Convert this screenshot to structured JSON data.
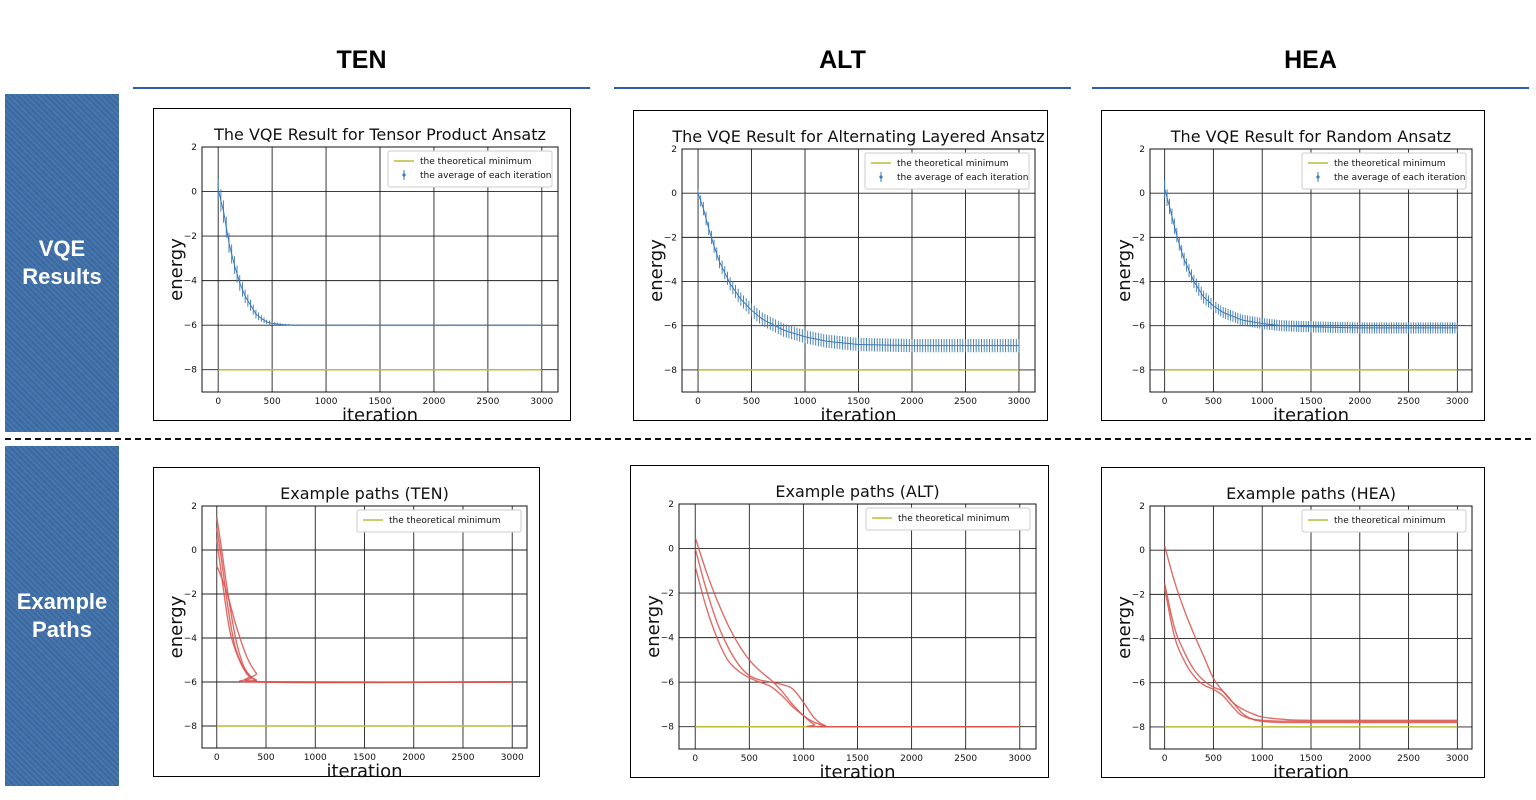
{
  "columns": [
    "TEN",
    "ALT",
    "HEA"
  ],
  "rows": [
    "VQE\nResults",
    "Example\nPaths"
  ],
  "colors": {
    "header_line": "#2f5fa8",
    "row_label_bg": "#3d6ea8",
    "average": "#3b78b5",
    "path": "#d9534f",
    "minimum": "#bcbc3a"
  },
  "chart_data": [
    {
      "type": "line",
      "title": "The VQE Result for Tensor Product Ansatz",
      "xlabel": "iteration",
      "ylabel": "energy",
      "xlim": [
        -150,
        3150
      ],
      "ylim": [
        -9,
        2
      ],
      "xticks": [
        0,
        500,
        1000,
        1500,
        2000,
        2500,
        3000
      ],
      "yticks": [
        2,
        0,
        -2,
        -4,
        -6,
        -8
      ],
      "grid": true,
      "legend": "top-right",
      "theoretical_minimum": -8,
      "series": [
        {
          "name": "the theoretical minimum",
          "kind": "line",
          "x": [
            0,
            3000
          ],
          "y": [
            -8,
            -8
          ]
        },
        {
          "name": "the average of each iteration",
          "kind": "errorbar",
          "x": [
            0,
            50,
            100,
            150,
            200,
            250,
            300,
            350,
            400,
            450,
            500,
            600,
            700,
            800,
            1000,
            1500,
            2000,
            2500,
            3000
          ],
          "y": [
            0.1,
            -0.9,
            -2.3,
            -3.3,
            -4.1,
            -4.7,
            -5.1,
            -5.5,
            -5.7,
            -5.85,
            -5.92,
            -5.98,
            -6.0,
            -6.0,
            -6.0,
            -6.0,
            -6.0,
            -6.0,
            -6.0
          ],
          "err": [
            0.5,
            0.5,
            0.45,
            0.4,
            0.35,
            0.3,
            0.25,
            0.2,
            0.15,
            0.1,
            0.08,
            0.05,
            0.03,
            0.02,
            0.02,
            0.02,
            0.02,
            0.02,
            0.02
          ]
        }
      ]
    },
    {
      "type": "line",
      "title": "The VQE Result for Alternating Layered Ansatz",
      "xlabel": "iteration",
      "ylabel": "energy",
      "xlim": [
        -150,
        3150
      ],
      "ylim": [
        -9,
        2
      ],
      "xticks": [
        0,
        500,
        1000,
        1500,
        2000,
        2500,
        3000
      ],
      "yticks": [
        2,
        0,
        -2,
        -4,
        -6,
        -8
      ],
      "grid": true,
      "legend": "top-right",
      "theoretical_minimum": -8,
      "series": [
        {
          "name": "the theoretical minimum",
          "kind": "line",
          "x": [
            0,
            3000
          ],
          "y": [
            -8,
            -8
          ]
        },
        {
          "name": "the average of each iteration",
          "kind": "errorbar",
          "x": [
            0,
            50,
            100,
            150,
            200,
            300,
            400,
            500,
            600,
            800,
            1000,
            1200,
            1500,
            2000,
            2500,
            3000
          ],
          "y": [
            0.0,
            -0.7,
            -1.6,
            -2.4,
            -3.1,
            -4.1,
            -4.8,
            -5.3,
            -5.7,
            -6.2,
            -6.5,
            -6.7,
            -6.85,
            -6.9,
            -6.9,
            -6.9
          ],
          "err": [
            0.2,
            0.3,
            0.3,
            0.3,
            0.3,
            0.3,
            0.3,
            0.3,
            0.3,
            0.3,
            0.3,
            0.3,
            0.3,
            0.3,
            0.3,
            0.3
          ]
        }
      ]
    },
    {
      "type": "line",
      "title": "The VQE Result for Random Ansatz",
      "xlabel": "iteration",
      "ylabel": "energy",
      "xlim": [
        -150,
        3150
      ],
      "ylim": [
        -9,
        2
      ],
      "xticks": [
        0,
        500,
        1000,
        1500,
        2000,
        2500,
        3000
      ],
      "yticks": [
        2,
        0,
        -2,
        -4,
        -6,
        -8
      ],
      "grid": true,
      "legend": "top-right",
      "theoretical_minimum": -8,
      "series": [
        {
          "name": "the theoretical minimum",
          "kind": "line",
          "x": [
            0,
            3000
          ],
          "y": [
            -8,
            -8
          ]
        },
        {
          "name": "the average of each iteration",
          "kind": "errorbar",
          "x": [
            0,
            50,
            100,
            150,
            200,
            300,
            400,
            500,
            600,
            800,
            1000,
            1200,
            1500,
            2000,
            2500,
            3000
          ],
          "y": [
            0.2,
            -0.6,
            -1.5,
            -2.3,
            -3.0,
            -4.0,
            -4.7,
            -5.1,
            -5.4,
            -5.75,
            -5.9,
            -6.0,
            -6.05,
            -6.1,
            -6.1,
            -6.1
          ],
          "err": [
            0.4,
            0.35,
            0.35,
            0.3,
            0.3,
            0.3,
            0.3,
            0.25,
            0.25,
            0.25,
            0.25,
            0.25,
            0.25,
            0.25,
            0.25,
            0.25
          ]
        }
      ]
    },
    {
      "type": "line",
      "title": "Example paths (TEN)",
      "xlabel": "iteration",
      "ylabel": "energy",
      "xlim": [
        -150,
        3150
      ],
      "ylim": [
        -9,
        2
      ],
      "xticks": [
        0,
        500,
        1000,
        1500,
        2000,
        2500,
        3000
      ],
      "yticks": [
        2,
        0,
        -2,
        -4,
        -6,
        -8
      ],
      "grid": true,
      "legend": "top-right",
      "theoretical_minimum": -8,
      "series": [
        {
          "name": "the theoretical minimum",
          "kind": "line",
          "x": [
            0,
            3000
          ],
          "y": [
            -8,
            -8
          ]
        },
        {
          "kind": "path",
          "x": [
            0,
            50,
            100,
            150,
            200,
            250,
            300,
            400,
            500,
            3000
          ],
          "y": [
            1.5,
            0.0,
            -1.6,
            -3.0,
            -4.2,
            -5.0,
            -5.5,
            -5.95,
            -6.0,
            -6.0
          ]
        },
        {
          "kind": "path",
          "x": [
            0,
            50,
            100,
            150,
            200,
            300,
            400,
            500,
            3000
          ],
          "y": [
            1.0,
            -0.5,
            -2.2,
            -3.6,
            -4.6,
            -5.6,
            -5.9,
            -6.0,
            -6.0
          ]
        },
        {
          "kind": "path",
          "x": [
            0,
            50,
            100,
            150,
            250,
            350,
            450,
            3000
          ],
          "y": [
            0.5,
            -1.2,
            -2.8,
            -4.0,
            -5.2,
            -5.8,
            -6.0,
            -6.0
          ]
        },
        {
          "kind": "path",
          "x": [
            0,
            100,
            200,
            300,
            400,
            500,
            3000
          ],
          "y": [
            -0.7,
            -1.9,
            -3.5,
            -4.8,
            -5.6,
            -6.0,
            -6.0
          ]
        }
      ]
    },
    {
      "type": "line",
      "title": "Example paths (ALT)",
      "xlabel": "iteration",
      "ylabel": "energy",
      "xlim": [
        -150,
        3150
      ],
      "ylim": [
        -9,
        2
      ],
      "xticks": [
        0,
        500,
        1000,
        1500,
        2000,
        2500,
        3000
      ],
      "yticks": [
        2,
        0,
        -2,
        -4,
        -6,
        -8
      ],
      "grid": true,
      "legend": "top-right",
      "theoretical_minimum": -8,
      "series": [
        {
          "name": "the theoretical minimum",
          "kind": "line",
          "x": [
            0,
            3000
          ],
          "y": [
            -8,
            -8
          ]
        },
        {
          "kind": "path",
          "x": [
            0,
            100,
            200,
            300,
            400,
            500,
            600,
            700,
            800,
            900,
            1000,
            1100,
            1200,
            1300,
            3000
          ],
          "y": [
            0.5,
            -1.0,
            -2.3,
            -3.4,
            -4.3,
            -5.0,
            -5.5,
            -5.9,
            -6.4,
            -7.0,
            -7.5,
            -7.8,
            -7.95,
            -8.0,
            -8.0
          ]
        },
        {
          "kind": "path",
          "x": [
            0,
            100,
            200,
            300,
            400,
            500,
            600,
            700,
            800,
            900,
            1000,
            1100,
            1200,
            1300,
            3000
          ],
          "y": [
            0.0,
            -1.8,
            -3.3,
            -4.4,
            -5.2,
            -5.7,
            -5.9,
            -6.0,
            -6.1,
            -6.3,
            -6.9,
            -7.6,
            -7.95,
            -8.0,
            -8.0
          ]
        },
        {
          "kind": "path",
          "x": [
            0,
            100,
            200,
            300,
            400,
            500,
            600,
            700,
            800,
            900,
            1000,
            1100,
            1200,
            3000
          ],
          "y": [
            -0.8,
            -2.6,
            -4.0,
            -5.0,
            -5.5,
            -5.8,
            -6.0,
            -6.2,
            -6.6,
            -7.1,
            -7.5,
            -7.9,
            -8.0,
            -8.0
          ]
        }
      ]
    },
    {
      "type": "line",
      "title": "Example paths (HEA)",
      "xlabel": "iteration",
      "ylabel": "energy",
      "xlim": [
        -150,
        3150
      ],
      "ylim": [
        -9,
        2
      ],
      "xticks": [
        0,
        500,
        1000,
        1500,
        2000,
        2500,
        3000
      ],
      "yticks": [
        2,
        0,
        -2,
        -4,
        -6,
        -8
      ],
      "grid": true,
      "legend": "top-right",
      "theoretical_minimum": -8,
      "series": [
        {
          "name": "the theoretical minimum",
          "kind": "line",
          "x": [
            0,
            3000
          ],
          "y": [
            -8,
            -8
          ]
        },
        {
          "kind": "path",
          "x": [
            0,
            100,
            200,
            300,
            400,
            500,
            600,
            700,
            800,
            900,
            1000,
            1200,
            1500,
            3000
          ],
          "y": [
            0.2,
            -1.4,
            -2.7,
            -3.8,
            -4.8,
            -5.8,
            -6.4,
            -6.9,
            -7.2,
            -7.4,
            -7.55,
            -7.65,
            -7.7,
            -7.7
          ]
        },
        {
          "kind": "path",
          "x": [
            0,
            100,
            200,
            300,
            400,
            500,
            600,
            700,
            800,
            900,
            1000,
            1200,
            1500,
            3000
          ],
          "y": [
            -1.5,
            -3.5,
            -4.6,
            -5.4,
            -5.9,
            -6.2,
            -6.4,
            -6.9,
            -7.4,
            -7.65,
            -7.75,
            -7.8,
            -7.8,
            -7.8
          ]
        },
        {
          "kind": "path",
          "x": [
            0,
            100,
            200,
            300,
            400,
            500,
            600,
            700,
            800,
            1000,
            1500,
            3000
          ],
          "y": [
            -1.7,
            -3.9,
            -5.0,
            -5.7,
            -6.1,
            -6.3,
            -6.6,
            -7.1,
            -7.5,
            -7.7,
            -7.75,
            -7.75
          ]
        }
      ]
    }
  ]
}
